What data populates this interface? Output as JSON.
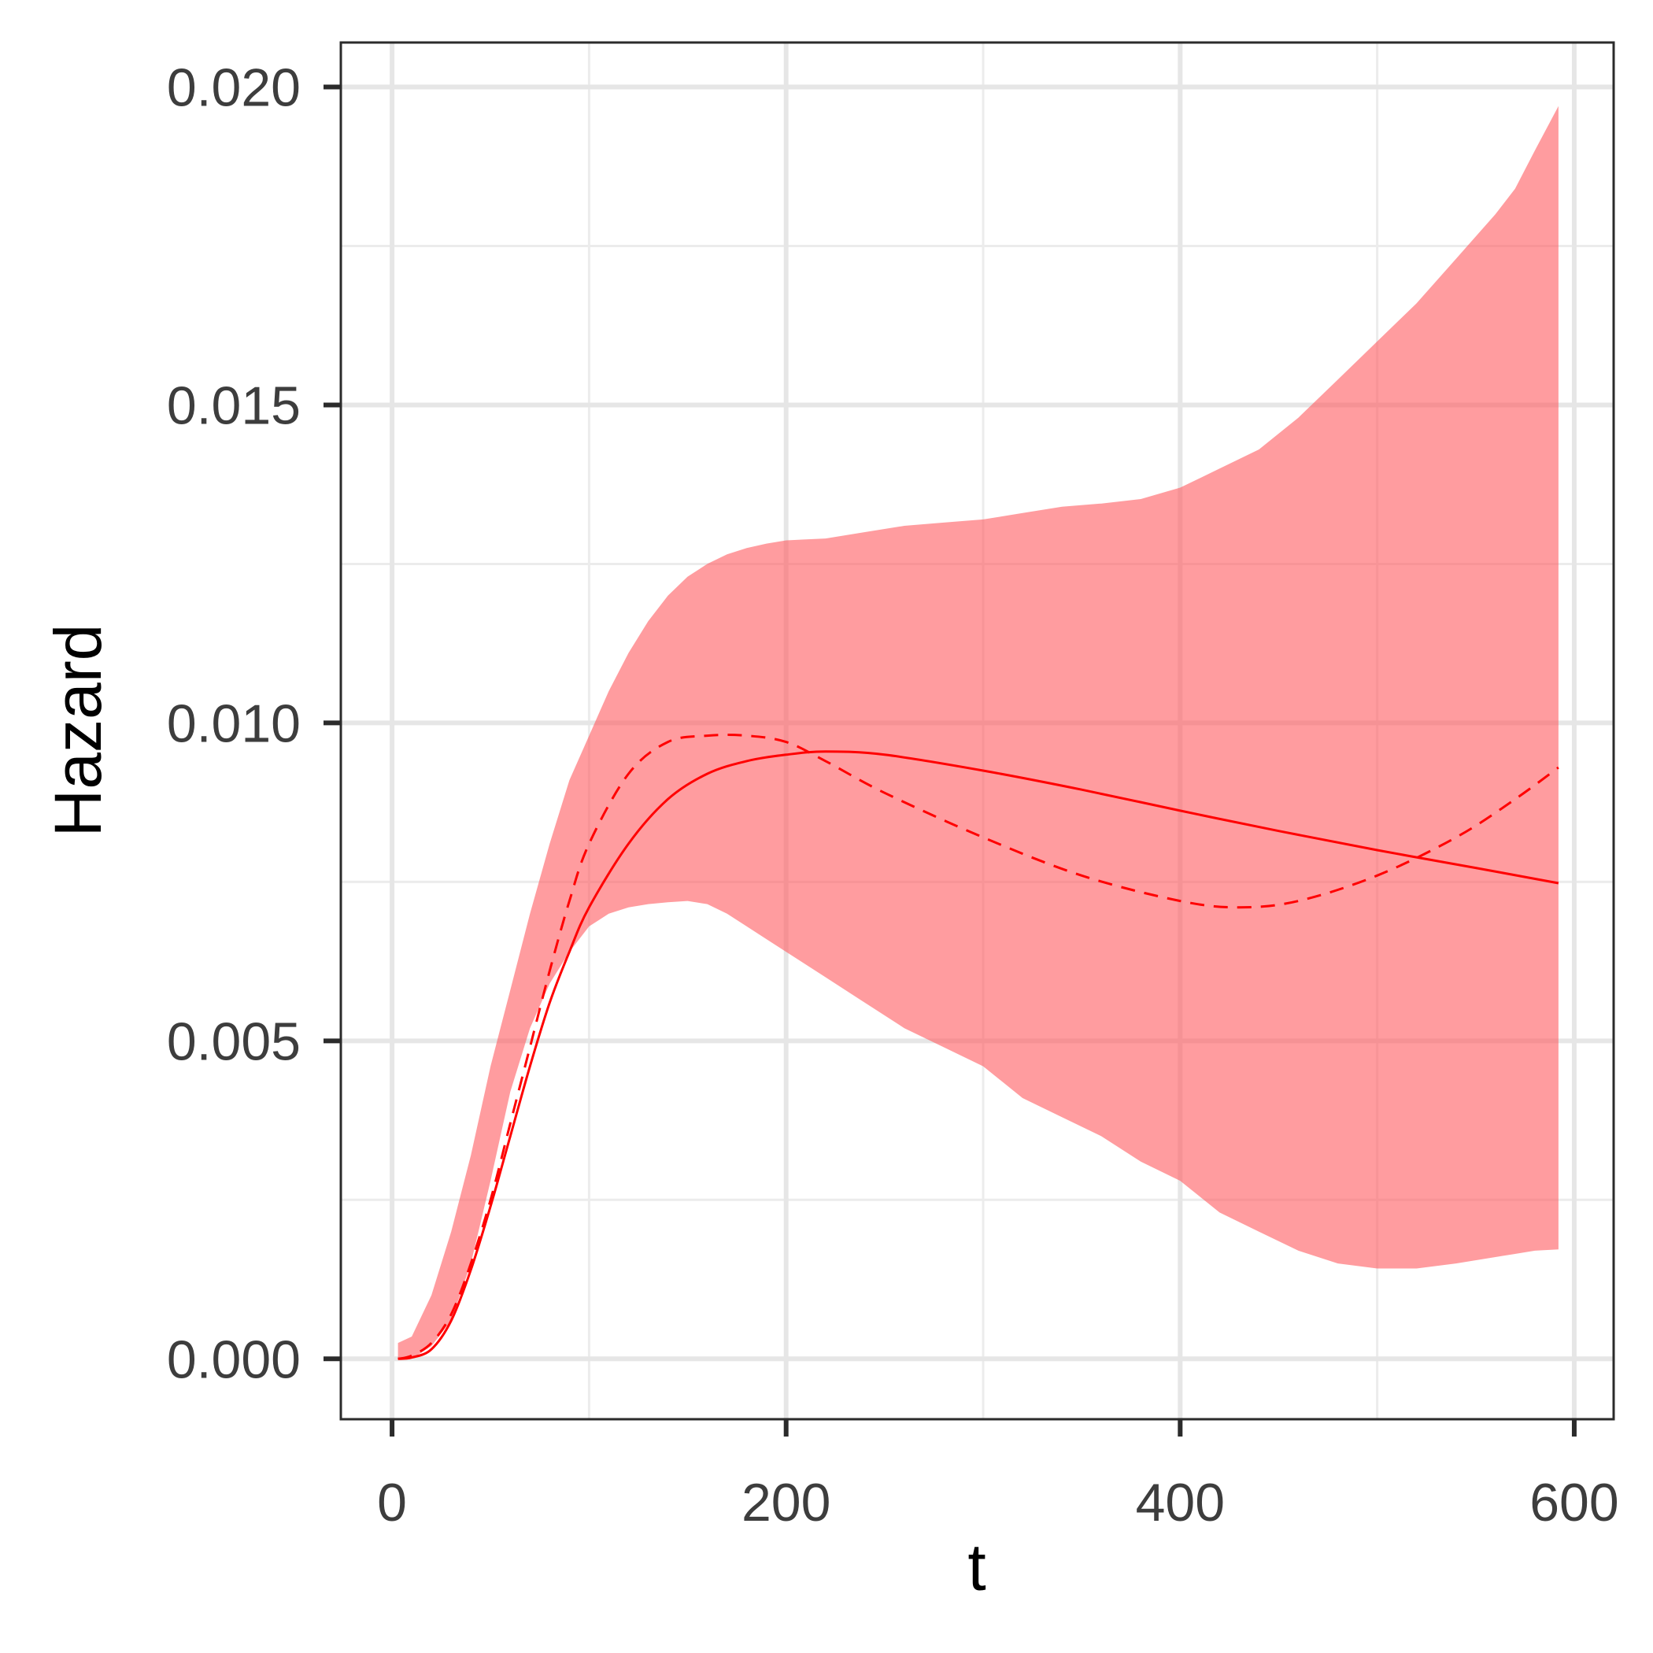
{
  "chart_data": {
    "type": "line",
    "title": "",
    "xlabel": "t",
    "ylabel": "Hazard",
    "xlim": [
      -26,
      620
    ],
    "ylim": [
      -0.00095,
      0.0207
    ],
    "x_ticks": [
      0,
      200,
      400,
      600
    ],
    "x_tick_labels": [
      "0",
      "200",
      "400",
      "600"
    ],
    "y_ticks": [
      0.0,
      0.005,
      0.01,
      0.015,
      0.02
    ],
    "y_tick_labels": [
      "0.000",
      "0.005",
      "0.010",
      "0.015",
      "0.020"
    ],
    "grid": true,
    "legend": "none",
    "colors": {
      "line": "#ff0000",
      "band": "#ff5a5f",
      "band_opacity": 0.6
    },
    "band": {
      "name": "",
      "x": [
        3,
        10,
        20,
        30,
        40,
        50,
        60,
        70,
        80,
        90,
        100,
        110,
        120,
        130,
        140,
        150,
        160,
        170,
        180,
        190,
        200,
        220,
        240,
        260,
        280,
        300,
        320,
        340,
        360,
        380,
        400,
        420,
        440,
        460,
        480,
        500,
        520,
        540,
        560,
        570,
        580,
        592
      ],
      "lower": [
        0.0,
        0.0,
        0.0002,
        0.0006,
        0.0015,
        0.0028,
        0.0042,
        0.0052,
        0.0059,
        0.0064,
        0.0068,
        0.007,
        0.0071,
        0.00715,
        0.00718,
        0.0072,
        0.00715,
        0.007,
        0.0068,
        0.0066,
        0.0064,
        0.006,
        0.0056,
        0.0052,
        0.0049,
        0.0046,
        0.0041,
        0.0038,
        0.0035,
        0.0031,
        0.0028,
        0.0023,
        0.002,
        0.0017,
        0.0015,
        0.00142,
        0.00142,
        0.0015,
        0.0016,
        0.00165,
        0.0017,
        0.00172
      ],
      "upper": [
        0.00025,
        0.00035,
        0.001,
        0.002,
        0.0032,
        0.0046,
        0.0058,
        0.007,
        0.0081,
        0.0091,
        0.0098,
        0.0105,
        0.0111,
        0.0116,
        0.012,
        0.0123,
        0.0125,
        0.01265,
        0.01275,
        0.01282,
        0.01287,
        0.0129,
        0.013,
        0.0131,
        0.01315,
        0.0132,
        0.0133,
        0.0134,
        0.01345,
        0.01352,
        0.0137,
        0.014,
        0.0143,
        0.0148,
        0.0154,
        0.016,
        0.0166,
        0.0173,
        0.018,
        0.0184,
        0.019,
        0.0197
      ]
    },
    "series": [
      {
        "style": "solid",
        "x": [
          3,
          10,
          20,
          30,
          40,
          50,
          60,
          70,
          80,
          90,
          100,
          120,
          140,
          160,
          180,
          200,
          220,
          250,
          300,
          350,
          400,
          450,
          500,
          550,
          592
        ],
        "y": [
          0.0,
          2e-05,
          0.00015,
          0.0006,
          0.0014,
          0.0024,
          0.0035,
          0.0046,
          0.0056,
          0.0064,
          0.0071,
          0.0081,
          0.0088,
          0.0092,
          0.0094,
          0.0095,
          0.00955,
          0.0095,
          0.00925,
          0.00895,
          0.00862,
          0.0083,
          0.008,
          0.00772,
          0.00748
        ]
      },
      {
        "style": "dashed",
        "x": [
          3,
          10,
          20,
          30,
          40,
          50,
          60,
          70,
          80,
          90,
          100,
          120,
          140,
          160,
          180,
          200,
          220,
          250,
          300,
          350,
          400,
          430,
          460,
          500,
          540,
          570,
          592
        ],
        "y": [
          0.0,
          5e-05,
          0.00025,
          0.0007,
          0.0015,
          0.0025,
          0.0037,
          0.0049,
          0.0061,
          0.0072,
          0.0081,
          0.0092,
          0.0097,
          0.0098,
          0.0098,
          0.0097,
          0.0094,
          0.0089,
          0.0082,
          0.0076,
          0.0072,
          0.0071,
          0.0072,
          0.0076,
          0.0082,
          0.0088,
          0.0093
        ]
      }
    ]
  }
}
